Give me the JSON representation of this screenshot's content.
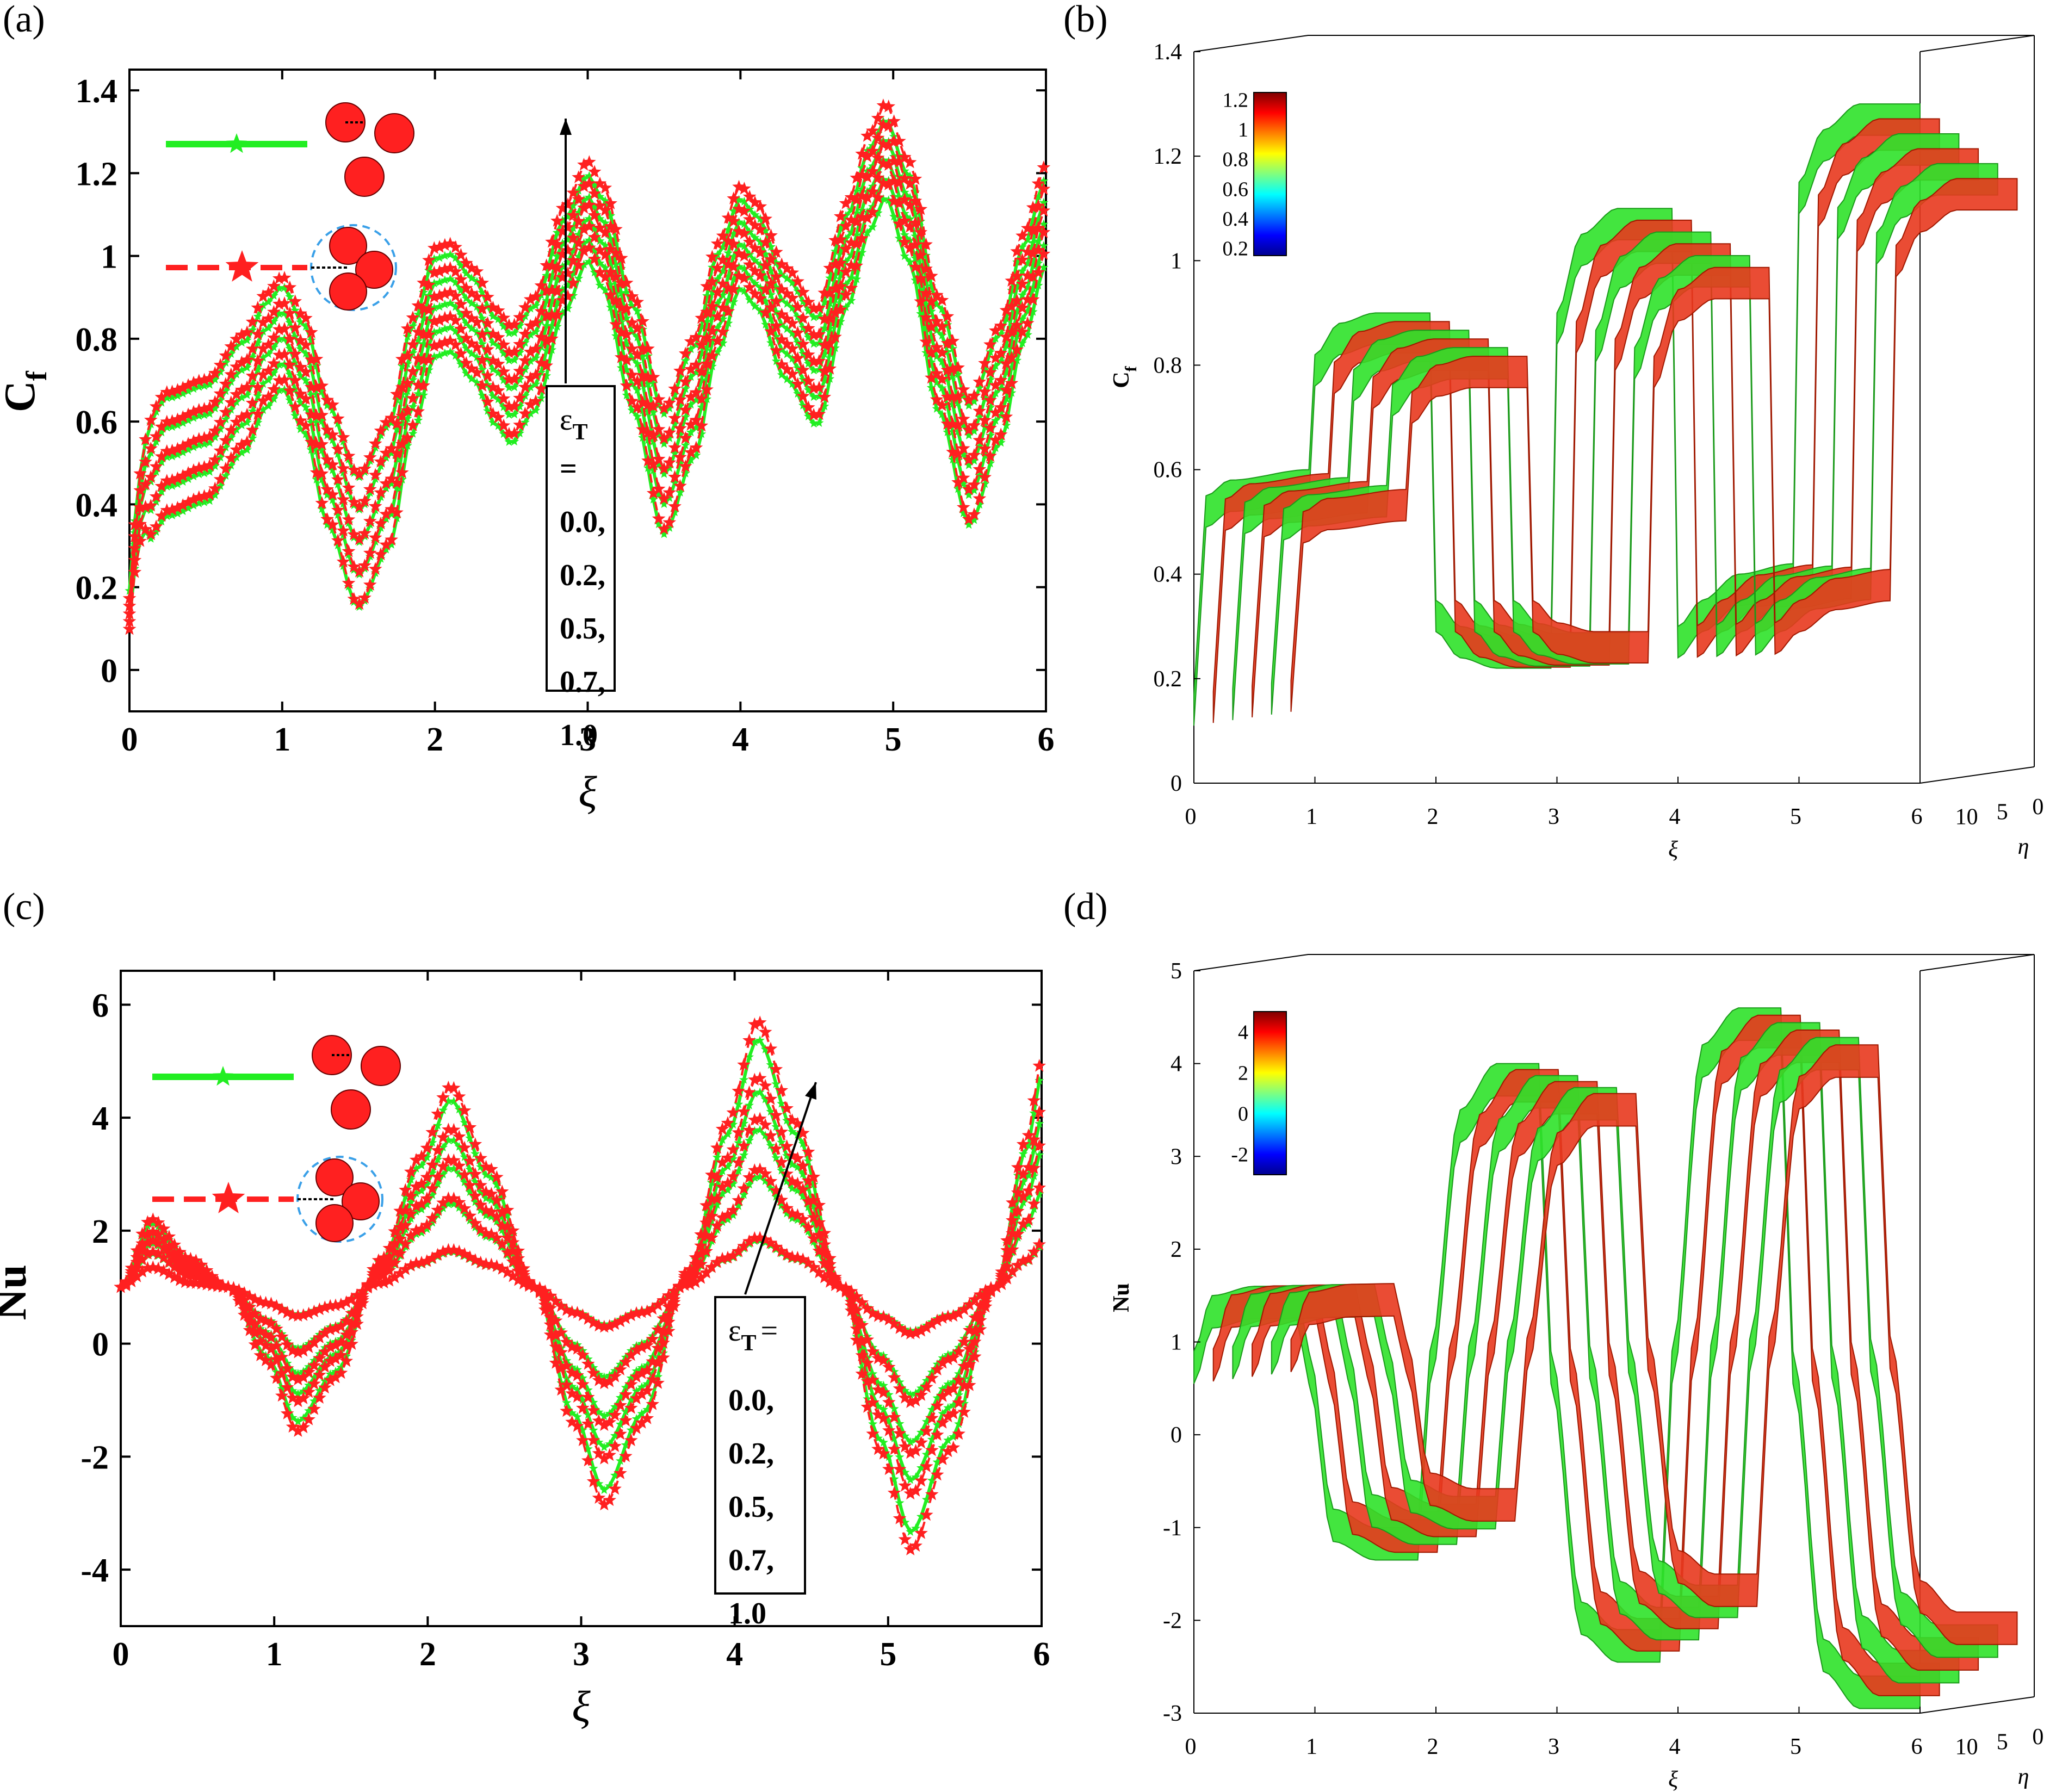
{
  "colors": {
    "red": "#ff2020",
    "green": "#22ee22",
    "dark_red": "#c02000",
    "surface_red": "#e8381e",
    "surface_green": "#2fe22a"
  },
  "legend_icons": [
    "nanoparticle-cluster-icon",
    "nanoparticle-aggregate-icon"
  ],
  "panels": {
    "a": {
      "label": "(a)"
    },
    "b": {
      "label": "(b)"
    },
    "c": {
      "label": "(c)"
    },
    "d": {
      "label": "(d)"
    }
  },
  "chart_data": [
    {
      "id": "a",
      "type": "line",
      "xlabel": "ξ",
      "ylabel_main": "C",
      "ylabel_sub": "f",
      "xlim": [
        0,
        6
      ],
      "ylim": [
        -0.1,
        1.45
      ],
      "xticks": [
        "0",
        "1",
        "2",
        "3",
        "4",
        "5",
        "6"
      ],
      "yticks": [
        "0",
        "0.2",
        "0.4",
        "0.6",
        "0.8",
        "1",
        "1.2",
        "1.4"
      ],
      "ytick_values": [
        0,
        0.2,
        0.4,
        0.6,
        0.8,
        1.0,
        1.2,
        1.4
      ],
      "annotation": {
        "param": "ε",
        "sub": "T",
        "eq": "=",
        "values": [
          "0.0,",
          "0.2,",
          "0.5,",
          "0.7,",
          "1.0"
        ]
      },
      "base": {
        "x": [
          0,
          0.02,
          0.1,
          0.25,
          0.5,
          0.75,
          0.9,
          1.0,
          1.15,
          1.3,
          1.5,
          1.7,
          1.85,
          2.0,
          2.1,
          2.25,
          2.4,
          2.5,
          2.65,
          2.85,
          3.0,
          3.1,
          3.3,
          3.5,
          3.7,
          3.85,
          4.0,
          4.1,
          4.3,
          4.5,
          4.7,
          4.85,
          4.95,
          5.1,
          5.3,
          5.5,
          5.7,
          5.85,
          6.0
        ],
        "y": [
          0.17,
          0.3,
          0.45,
          0.52,
          0.55,
          0.66,
          0.76,
          0.8,
          0.7,
          0.5,
          0.32,
          0.45,
          0.7,
          0.87,
          0.88,
          0.82,
          0.72,
          0.68,
          0.75,
          0.97,
          1.08,
          1.02,
          0.75,
          0.48,
          0.65,
          0.88,
          1.02,
          0.98,
          0.82,
          0.72,
          0.98,
          1.15,
          1.22,
          1.08,
          0.75,
          0.5,
          0.68,
          0.9,
          1.07
        ]
      },
      "series": [
        {
          "name": "cluster",
          "offsets": [
            -0.13,
            -0.065,
            0,
            0.065,
            0.13
          ],
          "amplitude": [
            1.0,
            0.9,
            0.8,
            0.7,
            0.6
          ]
        },
        {
          "name": "aggregate",
          "offsets": [
            -0.11,
            -0.045,
            0.02,
            0.085,
            0.15
          ],
          "amplitude": [
            1.1,
            1.0,
            0.9,
            0.8,
            0.7
          ]
        }
      ]
    },
    {
      "id": "b",
      "type": "area",
      "xlabel": "ξ",
      "ylabel_main": "C",
      "ylabel_sub": "f",
      "zlabel": "η",
      "xticks": [
        "0",
        "1",
        "2",
        "3",
        "4",
        "5",
        "6"
      ],
      "yticks": [
        "0",
        "0.2",
        "0.4",
        "0.6",
        "0.8",
        "1",
        "1.2",
        "1.4"
      ],
      "ytick_values": [
        0,
        0.2,
        0.4,
        0.6,
        0.8,
        1.0,
        1.2,
        1.4
      ],
      "zticks": [
        "10",
        "5",
        "0"
      ],
      "colorbar": {
        "ticks": [
          "1.2",
          "1",
          "0.8",
          "0.6",
          "0.4",
          "0.2"
        ],
        "range": [
          0.15,
          1.25
        ]
      },
      "surface": {
        "x": [
          0,
          0.1,
          0.3,
          0.95,
          1.0,
          1.2,
          1.5,
          1.95,
          2.0,
          2.2,
          2.5,
          2.95,
          3.0,
          3.2,
          3.5,
          3.95,
          4.0,
          4.2,
          4.5,
          4.95,
          5.0,
          5.2,
          5.5,
          6.0
        ],
        "y": [
          0.17,
          0.55,
          0.58,
          0.6,
          0.82,
          0.88,
          0.9,
          0.9,
          0.35,
          0.3,
          0.28,
          0.28,
          0.9,
          1.05,
          1.1,
          1.1,
          0.3,
          0.35,
          0.4,
          0.42,
          1.15,
          1.25,
          1.3,
          1.3
        ]
      },
      "ylim": [
        0,
        1.4
      ]
    },
    {
      "id": "c",
      "type": "line",
      "xlabel": "ξ",
      "ylabel_main": "Nu",
      "ylabel_sub": "",
      "xlim": [
        0,
        6
      ],
      "ylim": [
        -5,
        6.6
      ],
      "xticks": [
        "0",
        "1",
        "2",
        "3",
        "4",
        "5",
        "6"
      ],
      "yticks": [
        "-4",
        "-2",
        "0",
        "2",
        "4",
        "6"
      ],
      "ytick_values": [
        -4,
        -2,
        0,
        2,
        4,
        6
      ],
      "annotation": {
        "param": "ε",
        "sub": "T",
        "eq": "=",
        "values": [
          "0.0,",
          "0.2,",
          "0.5,",
          "0.7,",
          "1.0"
        ]
      },
      "base": {
        "x": [
          0,
          0.2,
          0.45,
          0.7,
          0.95,
          1.15,
          1.4,
          1.7,
          1.95,
          2.15,
          2.4,
          2.7,
          2.95,
          3.15,
          3.4,
          3.7,
          3.95,
          4.15,
          4.4,
          4.7,
          4.95,
          5.15,
          5.4,
          5.7,
          5.9,
          6.0
        ],
        "y": [
          1.0,
          1.2,
          1.0,
          1.0,
          0.9,
          0.85,
          0.9,
          1.0,
          1.1,
          1.15,
          1.1,
          1.0,
          0.9,
          0.85,
          0.9,
          1.0,
          1.1,
          1.2,
          1.1,
          1.0,
          0.9,
          0.85,
          0.9,
          1.0,
          1.1,
          1.2
        ]
      },
      "amp_x": [
        0,
        0.2,
        0.45,
        0.7,
        0.95,
        1.15,
        1.4,
        1.7,
        1.95,
        2.15,
        2.4,
        2.7,
        2.95,
        3.15,
        3.4,
        3.7,
        3.95,
        4.15,
        4.4,
        4.7,
        4.95,
        5.15,
        5.4,
        5.7,
        5.9,
        6.0
      ],
      "amp_y": [
        0.0,
        1.0,
        0.5,
        0.0,
        -1.2,
        -2.4,
        -1.5,
        0.5,
        2.2,
        3.4,
        2.0,
        0.0,
        -2.3,
        -3.7,
        -2.3,
        0.3,
        2.8,
        4.5,
        2.8,
        0.0,
        -2.8,
        -4.5,
        -2.8,
        0.0,
        2.5,
        3.8
      ],
      "levels": [
        0.15,
        0.42,
        0.62,
        0.78,
        1.0
      ],
      "series": [
        {
          "name": "cluster",
          "scale": 0.93
        },
        {
          "name": "aggregate",
          "scale": 1.0
        }
      ]
    },
    {
      "id": "d",
      "type": "area",
      "xlabel": "ξ",
      "ylabel_main": "Nu",
      "ylabel_sub": "",
      "zlabel": "η",
      "xticks": [
        "0",
        "1",
        "2",
        "3",
        "4",
        "5",
        "6"
      ],
      "yticks": [
        "-3",
        "-2",
        "-1",
        "0",
        "1",
        "2",
        "3",
        "4",
        "5"
      ],
      "ytick_values": [
        -3,
        -2,
        -1,
        0,
        1,
        2,
        3,
        4,
        5
      ],
      "zticks": [
        "10",
        "5",
        "0"
      ],
      "colorbar": {
        "ticks": [
          "4",
          "2",
          "0",
          "-2"
        ],
        "range": [
          -3,
          5
        ]
      },
      "surface": {
        "x": [
          0,
          0.15,
          0.5,
          0.85,
          0.95,
          1.15,
          1.5,
          1.85,
          1.95,
          2.2,
          2.5,
          2.85,
          2.95,
          3.2,
          3.5,
          3.85,
          3.95,
          4.2,
          4.5,
          4.85,
          4.95,
          5.2,
          5.5,
          6.0
        ],
        "y": [
          0.9,
          1.5,
          1.6,
          1.6,
          0.9,
          -0.8,
          -1.0,
          -1.0,
          0.9,
          3.5,
          4.0,
          4.0,
          0.9,
          -1.8,
          -2.1,
          -2.1,
          0.9,
          4.2,
          4.6,
          4.6,
          0.9,
          -2.2,
          -2.6,
          -2.6
        ],
        "y_low": [
          0.75,
          0.75,
          0.75,
          0.8,
          0.8,
          0.8,
          0.8,
          0.8,
          0.85,
          0.85,
          0.85,
          0.85,
          0.9,
          0.9,
          0.9,
          0.9,
          0.95,
          0.95,
          0.95,
          0.95,
          1.0,
          1.0,
          1.0,
          1.0
        ]
      },
      "ylim": [
        -3,
        5
      ]
    }
  ]
}
